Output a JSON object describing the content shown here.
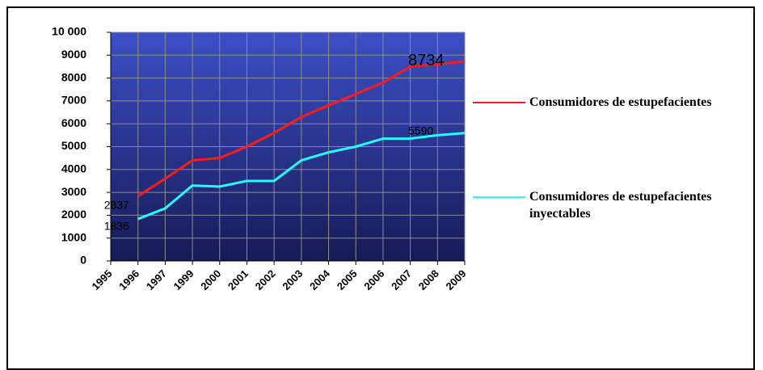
{
  "chart_data": {
    "type": "line",
    "categories": [
      "1995",
      "1996",
      "1997",
      "1999",
      "2000",
      "2001",
      "2002",
      "2003",
      "2004",
      "2005",
      "2006",
      "2007",
      "2008",
      "2009"
    ],
    "series": [
      {
        "name": "Consumidores de estupefacientes",
        "color": "#ff1a1a",
        "values": [
          null,
          2837,
          3600,
          4400,
          4500,
          5000,
          5600,
          6300,
          6800,
          7300,
          7800,
          8500,
          8600,
          8734
        ]
      },
      {
        "name": "Consumidores de estupefacientes inyectables",
        "color": "#22ffff",
        "values": [
          null,
          1836,
          2300,
          3300,
          3250,
          3500,
          3500,
          4400,
          4750,
          5000,
          5350,
          5350,
          5500,
          5590
        ]
      }
    ],
    "ylim": [
      0,
      10000
    ],
    "yticks": [
      0,
      1000,
      2000,
      3000,
      4000,
      5000,
      6000,
      7000,
      8000,
      9000,
      {
        "value": 10000,
        "label": "10 000"
      }
    ],
    "grid": true
  }
}
